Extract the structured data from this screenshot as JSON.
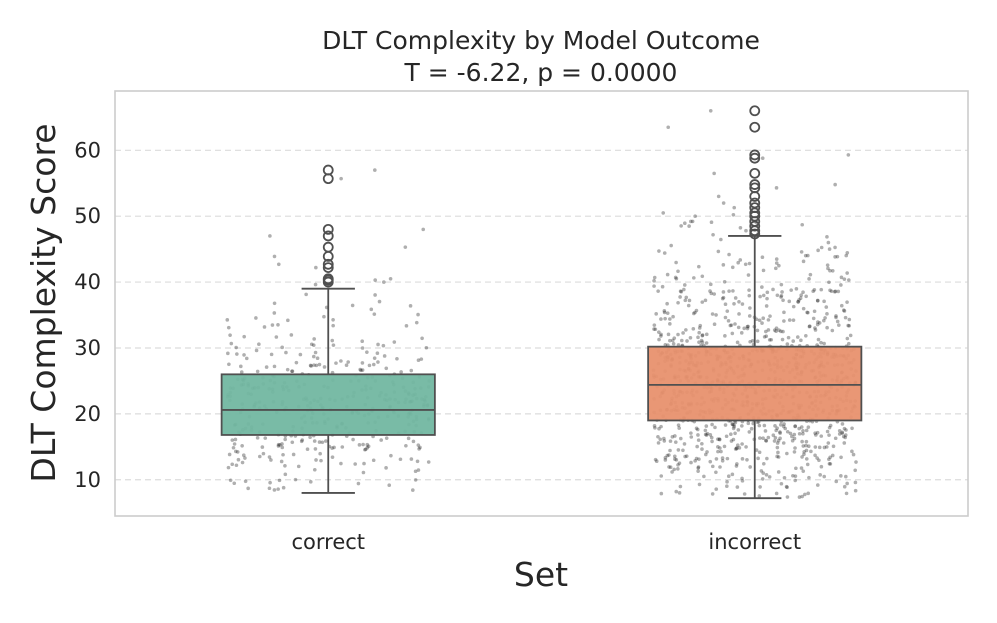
{
  "chart_data": {
    "type": "box",
    "title": "DLT Complexity by Model Outcome",
    "subtitle": "T = -6.22, p = 0.0000",
    "xlabel": "Set",
    "ylabel": "DLT Complexity Score",
    "ylim": [
      4.5,
      69
    ],
    "yticks": [
      10,
      20,
      30,
      40,
      50,
      60
    ],
    "grid": true,
    "categories": [
      "correct",
      "incorrect"
    ],
    "boxes": [
      {
        "name": "correct",
        "color": "#72b7a1",
        "whisker_low": 8.0,
        "q1": 16.8,
        "median": 20.6,
        "q3": 26.0,
        "whisker_high": 39.0,
        "outliers": [
          40.0,
          40.3,
          40.5,
          42.2,
          42.7,
          43.9,
          45.3,
          47.0,
          48.0,
          55.7,
          57.0
        ],
        "jitter_points": 400
      },
      {
        "name": "incorrect",
        "color": "#e8916e",
        "whisker_low": 7.2,
        "q1": 19.0,
        "median": 24.4,
        "q3": 30.2,
        "whisker_high": 47.0,
        "outliers": [
          47.3,
          47.8,
          48.5,
          49.2,
          50.0,
          50.5,
          51.3,
          52.0,
          53.0,
          54.3,
          54.8,
          56.5,
          58.8,
          59.3,
          63.5,
          66.0
        ],
        "jitter_points": 1100
      }
    ]
  }
}
